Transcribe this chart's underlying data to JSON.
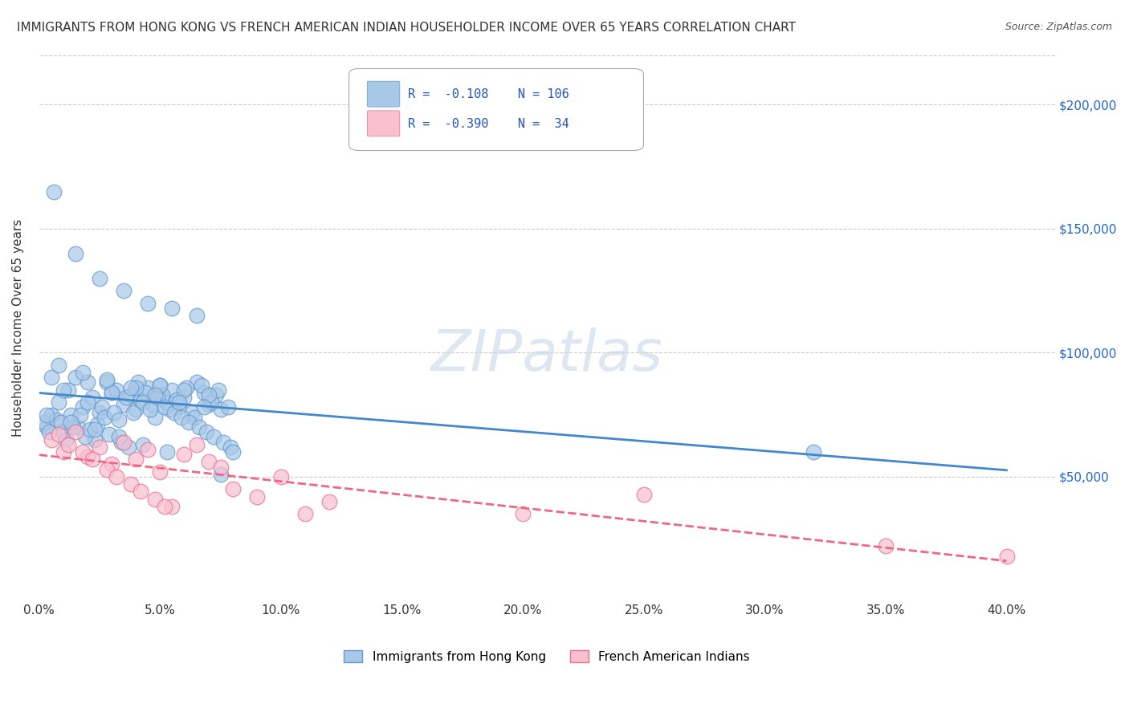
{
  "title": "IMMIGRANTS FROM HONG KONG VS FRENCH AMERICAN INDIAN HOUSEHOLDER INCOME OVER 65 YEARS CORRELATION CHART",
  "source": "Source: ZipAtlas.com",
  "ylabel": "Householder Income Over 65 years",
  "r_blue": -0.108,
  "n_blue": 106,
  "r_pink": -0.39,
  "n_pink": 34,
  "legend_label_blue": "Immigrants from Hong Kong",
  "legend_label_pink": "French American Indians",
  "ytick_labels": [
    "$50,000",
    "$100,000",
    "$150,000",
    "$200,000"
  ],
  "ytick_values": [
    50000,
    100000,
    150000,
    200000
  ],
  "xlim": [
    0.0,
    0.42
  ],
  "ylim": [
    0,
    220000
  ],
  "watermark": "ZIPatlas",
  "blue_scatter_x": [
    0.005,
    0.008,
    0.003,
    0.012,
    0.015,
    0.018,
    0.022,
    0.025,
    0.028,
    0.03,
    0.035,
    0.038,
    0.04,
    0.042,
    0.045,
    0.048,
    0.05,
    0.053,
    0.055,
    0.058,
    0.06,
    0.063,
    0.065,
    0.068,
    0.07,
    0.073,
    0.075,
    0.002,
    0.007,
    0.01,
    0.013,
    0.016,
    0.02,
    0.023,
    0.026,
    0.032,
    0.036,
    0.039,
    0.041,
    0.044,
    0.047,
    0.051,
    0.054,
    0.057,
    0.061,
    0.064,
    0.067,
    0.071,
    0.074,
    0.078,
    0.004,
    0.009,
    0.011,
    0.014,
    0.017,
    0.019,
    0.021,
    0.024,
    0.027,
    0.029,
    0.031,
    0.033,
    0.034,
    0.037,
    0.043,
    0.046,
    0.049,
    0.052,
    0.056,
    0.059,
    0.062,
    0.066,
    0.069,
    0.072,
    0.076,
    0.079,
    0.08,
    0.006,
    0.015,
    0.025,
    0.035,
    0.045,
    0.055,
    0.065,
    0.075,
    0.005,
    0.01,
    0.02,
    0.03,
    0.04,
    0.05,
    0.06,
    0.07,
    0.008,
    0.018,
    0.028,
    0.038,
    0.048,
    0.058,
    0.068,
    0.003,
    0.013,
    0.023,
    0.033,
    0.043,
    0.053,
    0.32
  ],
  "blue_scatter_y": [
    75000,
    80000,
    70000,
    85000,
    90000,
    78000,
    82000,
    76000,
    88000,
    84000,
    79000,
    83000,
    77000,
    81000,
    86000,
    74000,
    87000,
    80000,
    85000,
    78000,
    82000,
    76000,
    88000,
    84000,
    79000,
    83000,
    77000,
    72000,
    73000,
    68000,
    75000,
    70000,
    80000,
    65000,
    78000,
    85000,
    82000,
    76000,
    88000,
    84000,
    79000,
    83000,
    77000,
    81000,
    86000,
    74000,
    87000,
    80000,
    85000,
    78000,
    68000,
    72000,
    65000,
    70000,
    75000,
    66000,
    69000,
    71000,
    74000,
    67000,
    76000,
    73000,
    64000,
    62000,
    80000,
    77000,
    82000,
    78000,
    76000,
    74000,
    72000,
    70000,
    68000,
    66000,
    64000,
    62000,
    60000,
    165000,
    140000,
    130000,
    125000,
    120000,
    118000,
    115000,
    51000,
    90000,
    85000,
    88000,
    84000,
    86000,
    87000,
    85000,
    83000,
    95000,
    92000,
    89000,
    86000,
    83000,
    80000,
    78000,
    75000,
    72000,
    69000,
    66000,
    63000,
    60000,
    60000
  ],
  "pink_scatter_x": [
    0.005,
    0.01,
    0.015,
    0.02,
    0.025,
    0.03,
    0.035,
    0.04,
    0.045,
    0.05,
    0.055,
    0.06,
    0.065,
    0.07,
    0.075,
    0.08,
    0.09,
    0.1,
    0.11,
    0.12,
    0.008,
    0.012,
    0.018,
    0.022,
    0.028,
    0.032,
    0.038,
    0.042,
    0.048,
    0.052,
    0.4,
    0.35,
    0.25,
    0.2
  ],
  "pink_scatter_y": [
    65000,
    60000,
    68000,
    58000,
    62000,
    55000,
    64000,
    57000,
    61000,
    52000,
    38000,
    59000,
    63000,
    56000,
    54000,
    45000,
    42000,
    50000,
    35000,
    40000,
    67000,
    63000,
    60000,
    57000,
    53000,
    50000,
    47000,
    44000,
    41000,
    38000,
    18000,
    22000,
    43000,
    35000
  ]
}
